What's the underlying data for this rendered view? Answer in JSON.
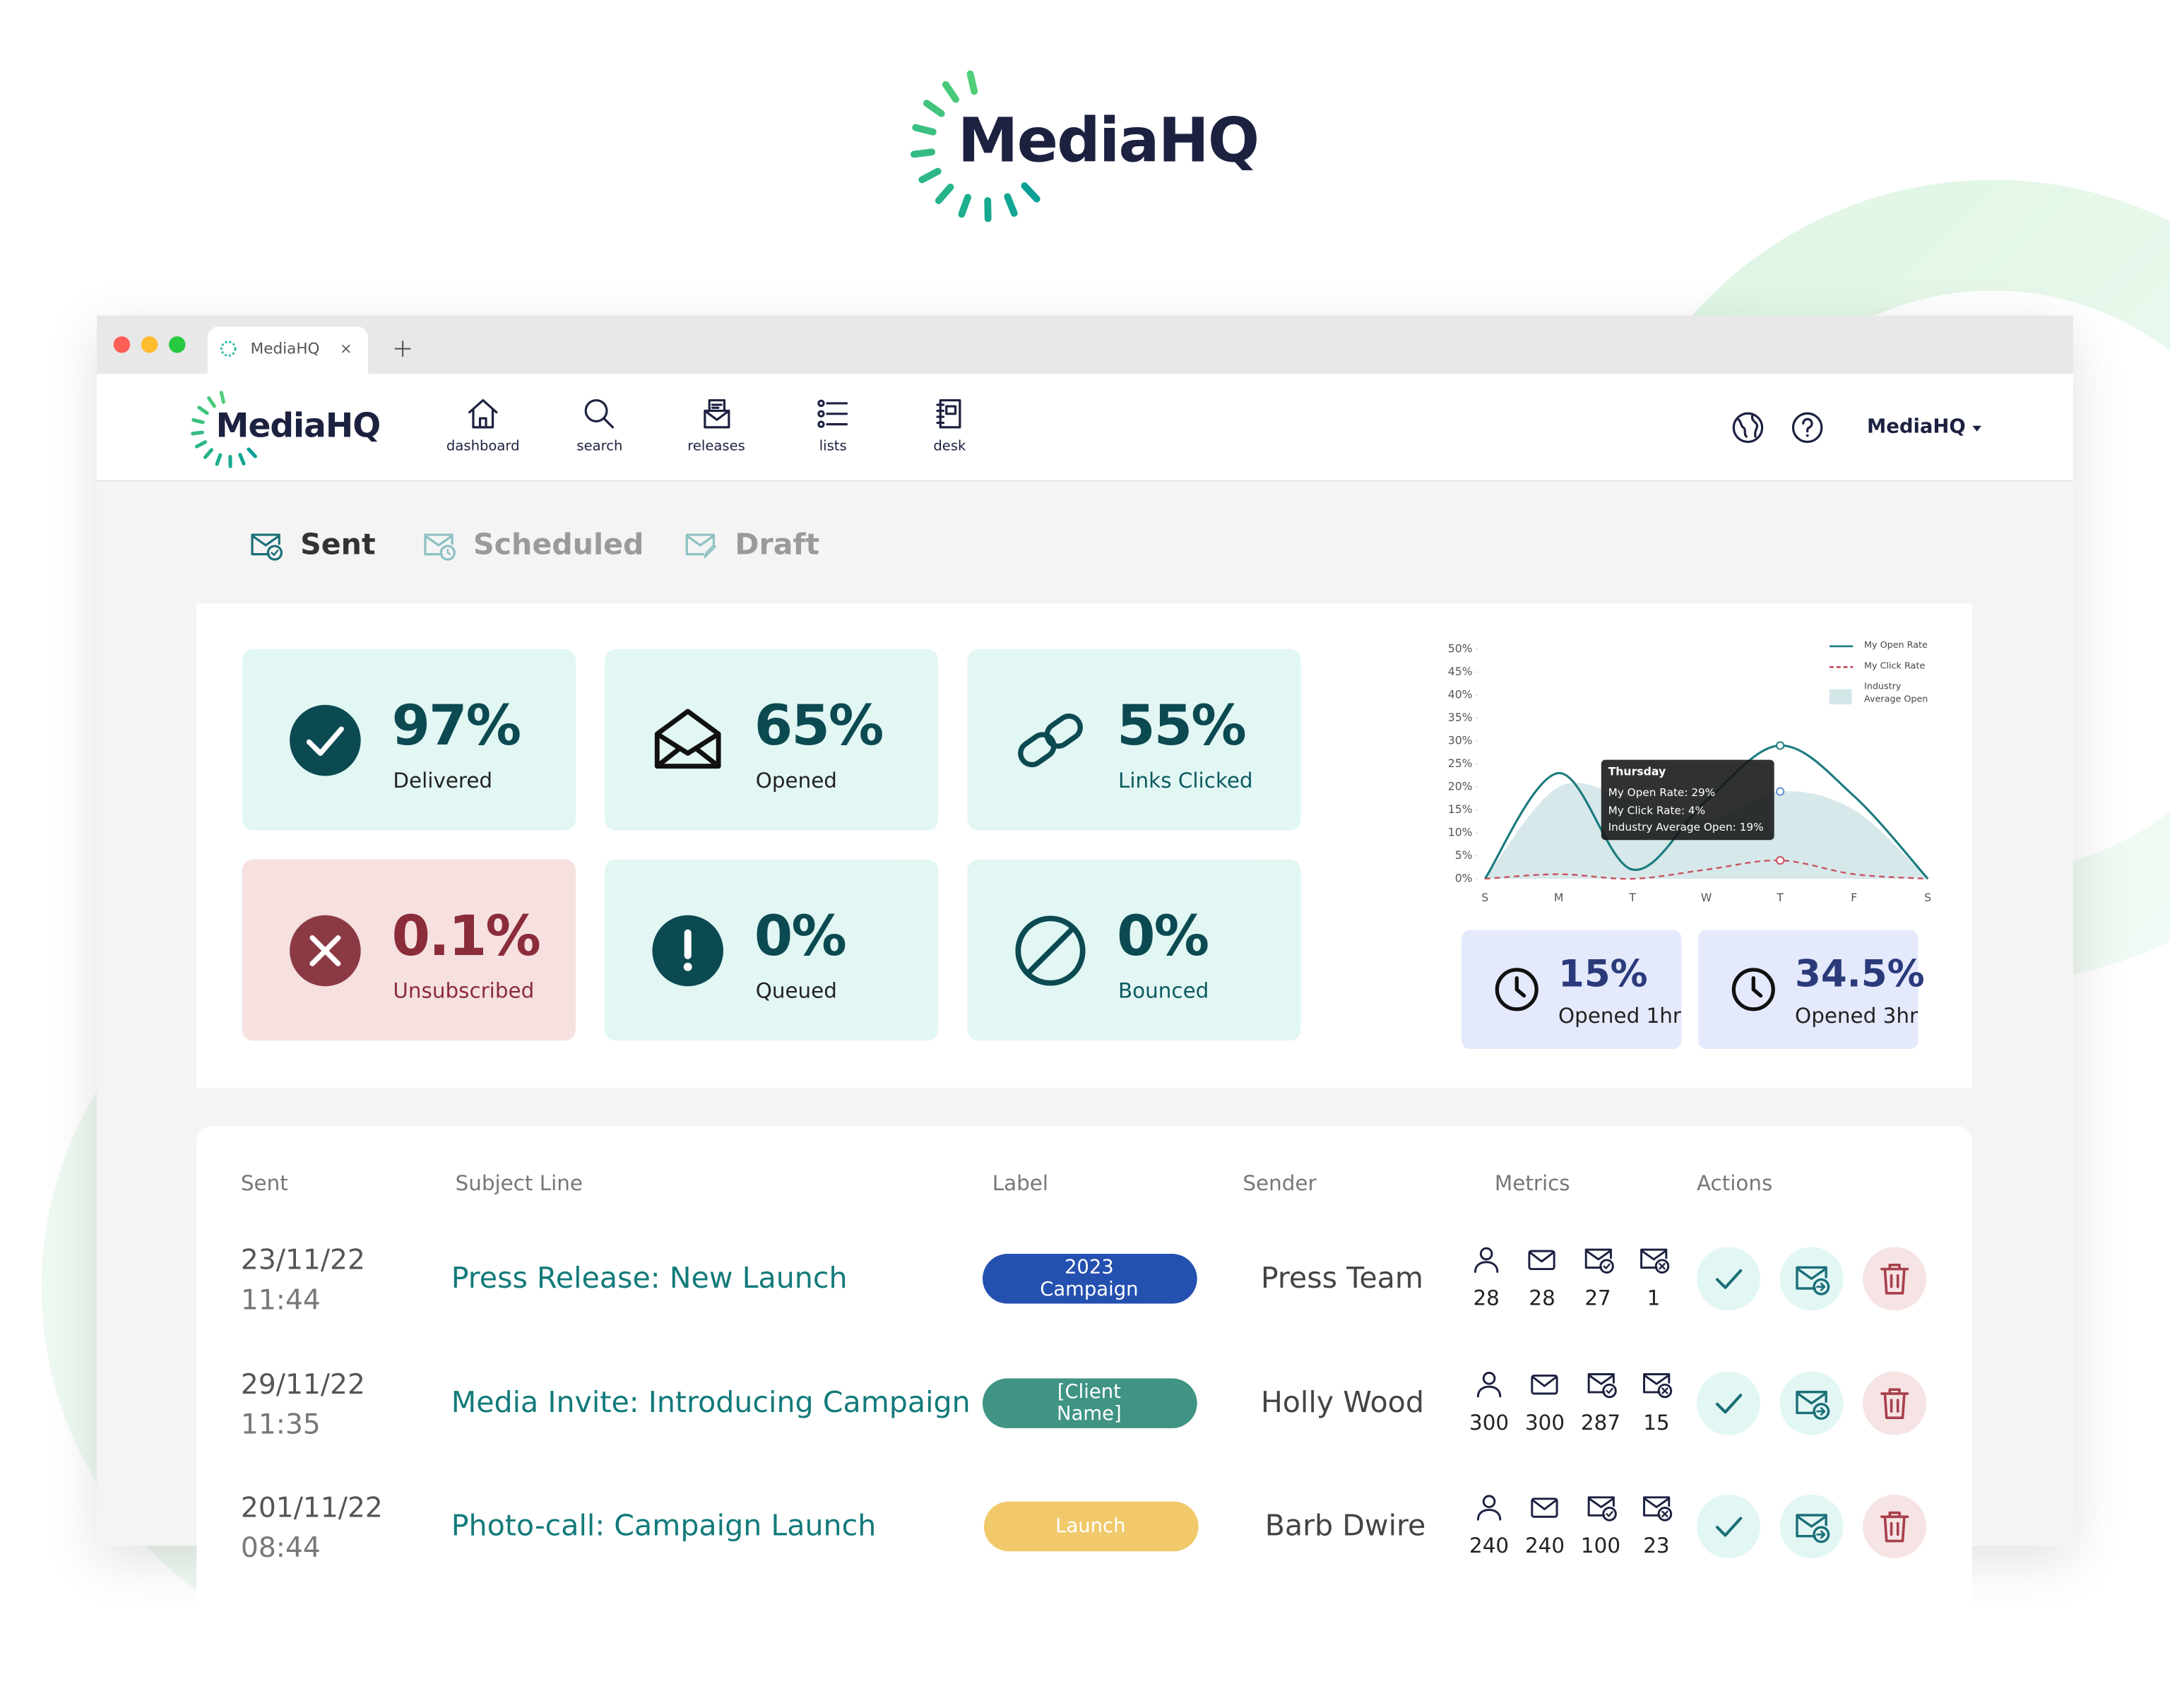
{
  "brand": "MediaHQ",
  "browser_tab": {
    "title": "MediaHQ"
  },
  "nav": {
    "items": [
      "dashboard",
      "search",
      "releases",
      "lists",
      "desk"
    ],
    "account": "MediaHQ"
  },
  "tabs": [
    "Sent",
    "Scheduled",
    "Draft"
  ],
  "stats": [
    {
      "value": "97%",
      "label": "Delivered"
    },
    {
      "value": "65%",
      "label": "Opened"
    },
    {
      "value": "55%",
      "label": "Links Clicked"
    },
    {
      "value": "0.1%",
      "label": "Unsubscribed"
    },
    {
      "value": "0%",
      "label": "Queued"
    },
    {
      "value": "0%",
      "label": "Bounced"
    }
  ],
  "time_stats": [
    {
      "value": "15%",
      "label": "Opened 1hr"
    },
    {
      "value": "34.5%",
      "label": "Opened 3hr"
    }
  ],
  "chart_data": {
    "type": "line",
    "categories": [
      "S",
      "M",
      "T",
      "W",
      "T",
      "F",
      "S"
    ],
    "series": [
      {
        "name": "My Open Rate",
        "color": "#1b7b7e",
        "style": "solid",
        "values": [
          0,
          23,
          2,
          17,
          29,
          18,
          0
        ]
      },
      {
        "name": "My Click Rate",
        "color": "#c9505e",
        "style": "dashed",
        "values": [
          0,
          1,
          0,
          2,
          4,
          1,
          0
        ]
      },
      {
        "name": "Industry Average Open",
        "color": "#d3e6e8",
        "style": "area",
        "values": [
          0,
          20,
          17,
          13,
          19,
          15,
          0
        ]
      }
    ],
    "ylim": [
      0,
      50
    ],
    "yticks": [
      {
        "value": 0,
        "label": "0%"
      },
      {
        "value": 5,
        "label": "5%"
      },
      {
        "value": 10,
        "label": "10%"
      },
      {
        "value": 15,
        "label": "15%"
      },
      {
        "value": 20,
        "label": "20%"
      },
      {
        "value": 25,
        "label": "25%"
      },
      {
        "value": 30,
        "label": "30%"
      },
      {
        "value": 35,
        "label": "35%"
      },
      {
        "value": 40,
        "label": "40%"
      },
      {
        "value": 45,
        "label": "45%"
      },
      {
        "value": 50,
        "label": "50%"
      }
    ],
    "tooltip": {
      "index": 4,
      "title": "Thursday",
      "lines": [
        "My Open Rate: 29%",
        "My Click Rate: 4%",
        "Industry Average Open: 19%"
      ]
    }
  },
  "table": {
    "headers": [
      "Sent",
      "Subject Line",
      "Label",
      "Sender",
      "Metrics",
      "Actions"
    ],
    "rows": [
      {
        "date": "23/11/22",
        "time": "11:44",
        "subject": "Press Release: New Launch",
        "label": "2023 Campaign",
        "label_color": "#2450b0",
        "sender": "Press Team",
        "metrics": [
          28,
          28,
          27,
          1
        ]
      },
      {
        "date": "29/11/22",
        "time": "11:35",
        "subject": "Media Invite: Introducing Campaign",
        "label": "[Client Name]",
        "label_color": "#3f9484",
        "sender": "Holly Wood",
        "metrics": [
          300,
          300,
          287,
          15
        ]
      },
      {
        "date": "201/11/22",
        "time": "08:44",
        "subject": "Photo-call: Campaign Launch",
        "label": "Launch",
        "label_color": "#f1c96b",
        "sender": "Barb Dwire",
        "metrics": [
          240,
          240,
          100,
          23
        ]
      }
    ]
  }
}
